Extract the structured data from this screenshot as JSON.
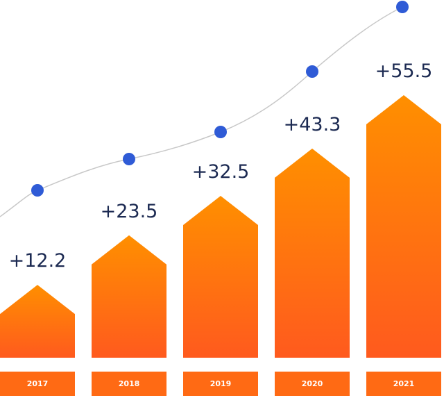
{
  "chart_data": {
    "type": "arrow-bar",
    "categories": [
      "2017",
      "2018",
      "2019",
      "2020",
      "2021"
    ],
    "values": [
      12.2,
      23.5,
      32.5,
      43.3,
      55.5
    ],
    "value_labels": [
      "+12.2",
      "+23.5",
      "+32.5",
      "+43.3",
      "+55.5"
    ],
    "color": "#ff7a0f"
  }
}
